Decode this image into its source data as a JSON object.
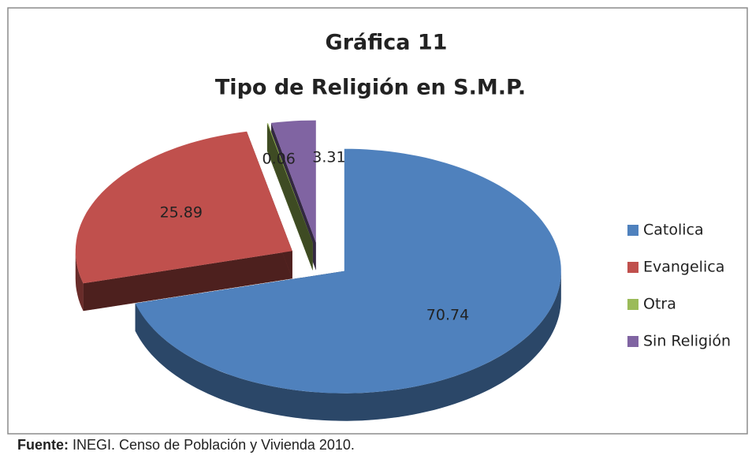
{
  "chart_data": {
    "type": "pie3d",
    "title": "Gráfica 11",
    "subtitle": "Tipo de Religión en S.M.P.",
    "categories": [
      "Catolica",
      "Evangelica",
      "Otra",
      "Sin Religión"
    ],
    "values": [
      70.74,
      25.89,
      0.06,
      3.31
    ],
    "colors": [
      "#4f81bd",
      "#c0504d",
      "#9bbb59",
      "#8064a2"
    ],
    "legend": "right"
  },
  "footer": {
    "label": "Fuente:",
    "text": "INEGI. Censo de Población y Vivienda 2010."
  }
}
